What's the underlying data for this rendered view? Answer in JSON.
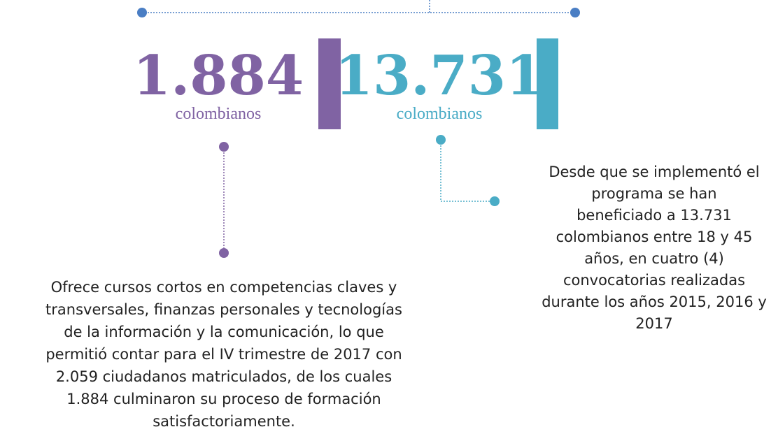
{
  "stats": [
    {
      "number": "1.884",
      "label": "colombianos",
      "description": [
        "Ofrece cursos cortos en competencias claves y",
        "transversales, finanzas personales y tecnologías",
        "de la información y la comunicación, lo que",
        "permitió contar para el IV trimestre de 2017 con",
        "2.059 ciudadanos matriculados, de los cuales",
        "1.884 culminaron su proceso de formación",
        "satisfactoriamente."
      ]
    },
    {
      "number": "13.731",
      "label": "colombianos",
      "description": [
        "Desde que se implementó el",
        "programa se han",
        "beneficiado a 13.731",
        "colombianos entre 18 y 45",
        "años, en cuatro (4)",
        "convocatorias realizadas",
        "durante los años 2015, 2016 y",
        "2017"
      ]
    }
  ]
}
